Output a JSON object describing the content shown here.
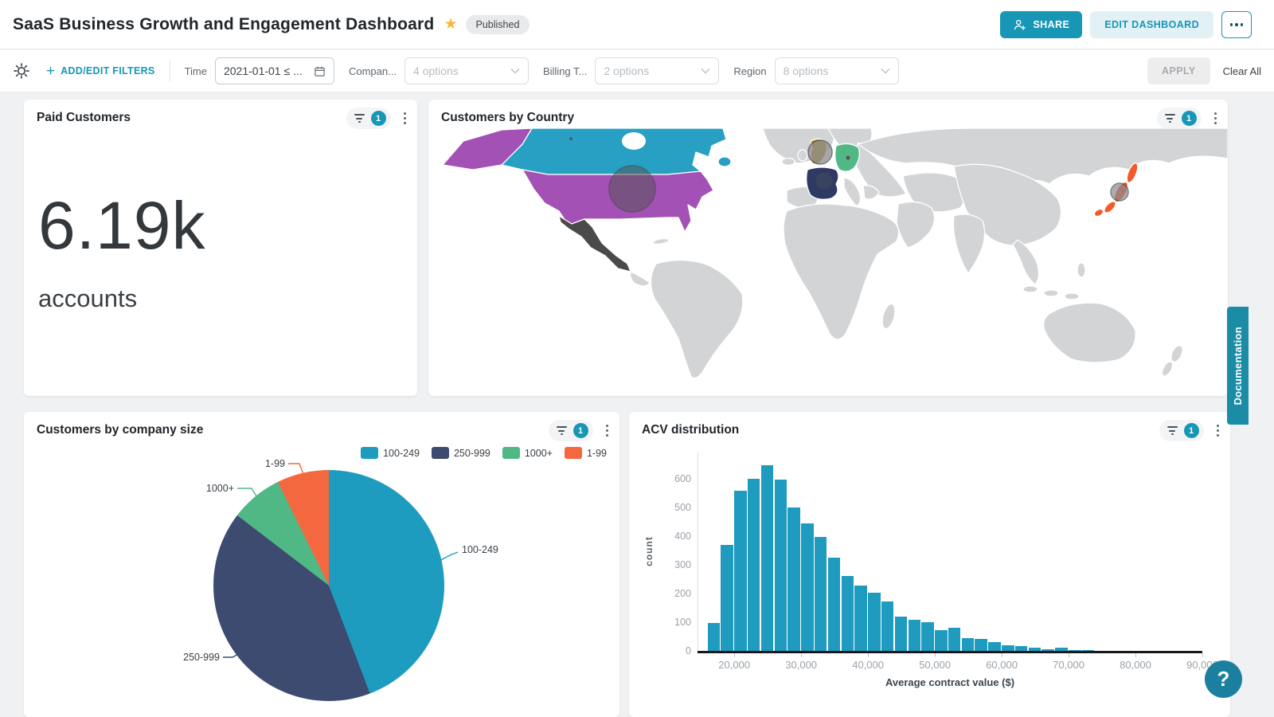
{
  "page": {
    "background": "#f0f1f3",
    "accent_color": "#1796b6"
  },
  "header": {
    "title": "SaaS Business Growth and Engagement Dashboard",
    "status_badge": "Published",
    "share_button": "SHARE",
    "edit_button": "EDIT DASHBOARD",
    "star_color": "#f6b93b"
  },
  "filter_bar": {
    "plus": "+",
    "add_edit_filters": "ADD/EDIT FILTERS",
    "time": {
      "label": "Time",
      "value": "2021-01-01 ≤ ..."
    },
    "company": {
      "label": "Compan...",
      "value": "4 options"
    },
    "billing": {
      "label": "Billing T...",
      "value": "2 options"
    },
    "region": {
      "label": "Region",
      "value": "8 options"
    },
    "apply_button": "APPLY",
    "clear_all": "Clear All"
  },
  "cards": {
    "paid_customers": {
      "title": "Paid Customers",
      "filter_count": "1",
      "value": "6.19k",
      "unit": "accounts"
    },
    "customers_by_country": {
      "title": "Customers by Country",
      "filter_count": "1"
    },
    "company_size": {
      "title": "Customers by company size",
      "filter_count": "1"
    },
    "acv": {
      "title": "ACV distribution",
      "filter_count": "1"
    }
  },
  "chart_data": [
    {
      "type": "pie",
      "title": "Customers by company size",
      "legend_position": "top-right",
      "slices": [
        {
          "label": "100-249",
          "percent": 44.2,
          "color": "#1e9cbf"
        },
        {
          "label": "250-999",
          "percent": 41.2,
          "color": "#3e4b71"
        },
        {
          "label": "1000+",
          "percent": 7.3,
          "color": "#50b885"
        },
        {
          "label": "1-99",
          "percent": 7.3,
          "color": "#f4683f"
        }
      ]
    },
    {
      "type": "bar",
      "subtype": "histogram",
      "title": "ACV distribution",
      "xlabel": "Average contract value ($)",
      "ylabel": "count",
      "bar_color": "#1e9bbe",
      "grid": false,
      "bin_start": 16000,
      "bin_width": 2000,
      "values": [
        98,
        370,
        557,
        601,
        647,
        598,
        500,
        445,
        396,
        325,
        261,
        228,
        203,
        173,
        120,
        109,
        100,
        71,
        80,
        44,
        41,
        31,
        20,
        18,
        12,
        6,
        10,
        2,
        4
      ],
      "xlim": [
        14500,
        90000
      ],
      "ylim": [
        0,
        694
      ],
      "x_ticks": [
        20000,
        30000,
        40000,
        50000,
        60000,
        70000,
        80000,
        90000
      ],
      "x_tick_labels": [
        "20,000",
        "30,000",
        "40,000",
        "50,000",
        "60,000",
        "70,000",
        "80,000",
        "90,000"
      ],
      "y_ticks": [
        0,
        100,
        200,
        300,
        400,
        500,
        600
      ]
    },
    {
      "type": "heatmap",
      "subtype": "choropleth-world-map",
      "title": "Customers by Country",
      "base_land_color": "#d2d4d6",
      "regions": [
        {
          "id": "canada",
          "name": "Canada",
          "color": "#27a0c4"
        },
        {
          "id": "usa",
          "name": "United States",
          "color": "#a351b5"
        },
        {
          "id": "alaska",
          "name": "United States (Alaska)",
          "color": "#a351b5"
        },
        {
          "id": "mexico",
          "name": "Mexico",
          "color": "#4a4a4a"
        },
        {
          "id": "uk",
          "name": "United Kingdom",
          "color": "#b9952c"
        },
        {
          "id": "france",
          "name": "France",
          "color": "#2e3a63"
        },
        {
          "id": "germany",
          "name": "Germany",
          "color": "#50b885"
        },
        {
          "id": "japan",
          "name": "Japan",
          "color": "#f15a29"
        }
      ],
      "bubbles": [
        {
          "region": "United States"
        },
        {
          "region": "United Kingdom"
        },
        {
          "region": "France"
        },
        {
          "region": "Japan"
        }
      ]
    }
  ],
  "side_tab": {
    "label": "Documentation"
  },
  "help_button": {
    "label": "?"
  }
}
